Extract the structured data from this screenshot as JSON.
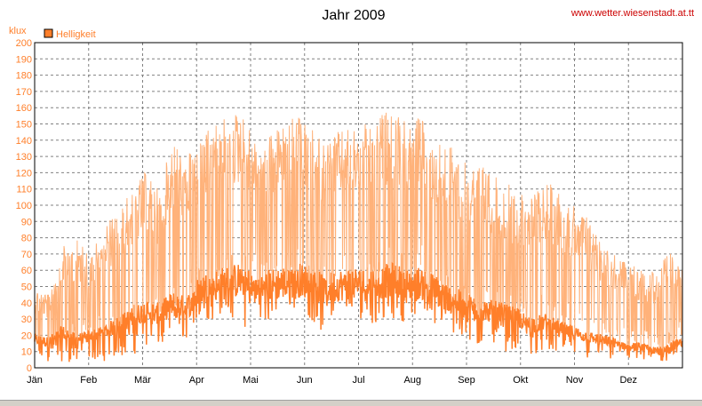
{
  "title": "Jahr 2009",
  "source": "www.wetter.wiesenstadt.at.tt",
  "legend": {
    "label": "Helligkeit"
  },
  "colors": {
    "series_light": "#ffb27a",
    "series_dark": "#ff7f2a",
    "grid": "#808080",
    "source": "#cc0000"
  },
  "chart_data": {
    "type": "line",
    "title": "Jahr 2009",
    "ylabel": "klux",
    "xlabel": "",
    "ylim": [
      0,
      200
    ],
    "yticks": [
      0,
      10,
      20,
      30,
      40,
      50,
      60,
      70,
      80,
      90,
      100,
      110,
      120,
      130,
      140,
      150,
      160,
      170,
      180,
      190,
      200
    ],
    "xticks": [
      "Jän",
      "Feb",
      "Mär",
      "Apr",
      "Mai",
      "Jun",
      "Jul",
      "Aug",
      "Sep",
      "Okt",
      "Nov",
      "Dez"
    ],
    "grid": true,
    "legend_position": "top-left",
    "series": [
      {
        "name": "Helligkeit",
        "x_unit": "week of year",
        "values_max": [
          50,
          45,
          78,
          80,
          70,
          90,
          95,
          110,
          120,
          110,
          140,
          130,
          140,
          150,
          155,
          160,
          140,
          145,
          150,
          155,
          148,
          140,
          145,
          148,
          150,
          155,
          160,
          150,
          155,
          140,
          138,
          130,
          130,
          120,
          115,
          110,
          105,
          115,
          110,
          100,
          95,
          80,
          70,
          65,
          60,
          60,
          70,
          72
        ],
        "values_min": [
          3,
          2,
          4,
          3,
          5,
          4,
          6,
          8,
          10,
          12,
          15,
          18,
          25,
          30,
          35,
          20,
          35,
          25,
          40,
          35,
          30,
          20,
          35,
          30,
          30,
          25,
          30,
          28,
          35,
          25,
          20,
          15,
          12,
          15,
          10,
          10,
          8,
          10,
          8,
          6,
          5,
          4,
          4,
          3,
          3,
          3,
          4,
          5
        ],
        "values_daily": [
          20,
          18,
          25,
          20,
          22,
          25,
          30,
          35,
          40,
          38,
          45,
          42,
          55,
          58,
          60,
          62,
          55,
          58,
          60,
          62,
          60,
          55,
          58,
          60,
          58,
          60,
          62,
          58,
          60,
          55,
          50,
          45,
          42,
          40,
          38,
          35,
          30,
          32,
          28,
          25,
          22,
          20,
          18,
          15,
          15,
          12,
          15,
          18
        ]
      }
    ]
  }
}
